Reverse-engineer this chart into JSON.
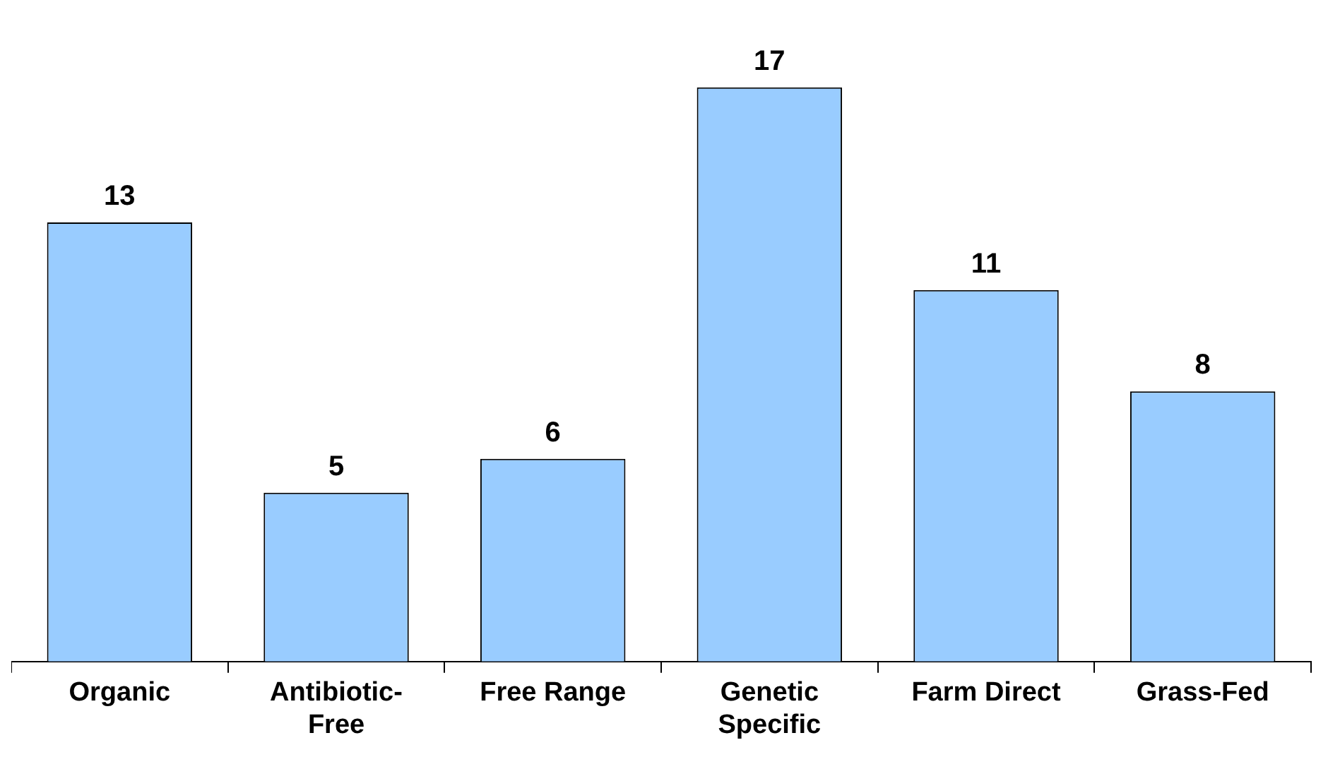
{
  "chart_data": {
    "type": "bar",
    "categories": [
      "Organic",
      "Antibiotic-Free",
      "Free Range",
      "Genetic Specific",
      "Farm Direct",
      "Grass-Fed"
    ],
    "values": [
      13,
      5,
      6,
      17,
      11,
      8
    ],
    "color": "#99ccff",
    "data_labels": true,
    "tick_labels": "x",
    "grid": false,
    "legend": false
  }
}
